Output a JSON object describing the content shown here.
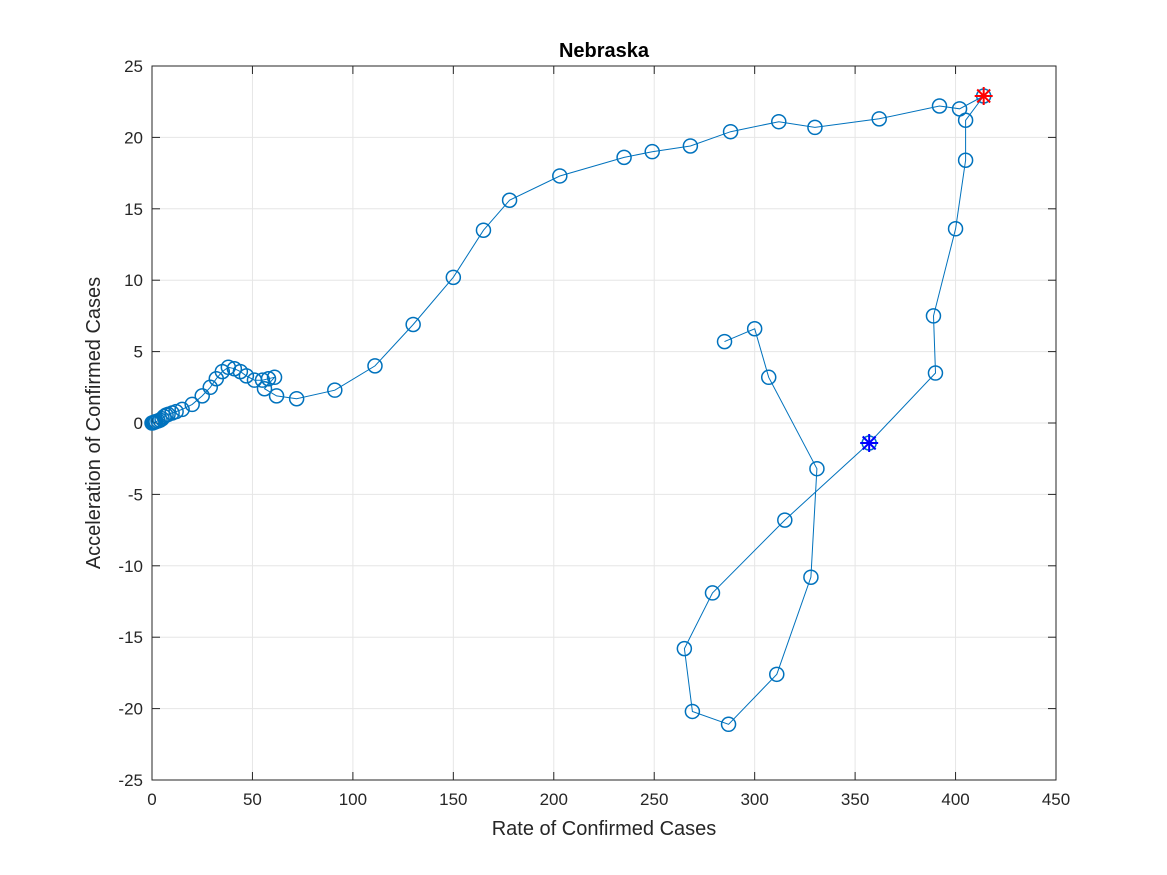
{
  "chart_data": {
    "type": "line",
    "title": "Nebraska",
    "xlabel": "Rate of Confirmed Cases",
    "ylabel": "Acceleration of Confirmed Cases",
    "xlim": [
      0,
      450
    ],
    "ylim": [
      -25,
      25
    ],
    "xticks": [
      0,
      50,
      100,
      150,
      200,
      250,
      300,
      350,
      400,
      450
    ],
    "yticks": [
      -25,
      -20,
      -15,
      -10,
      -5,
      0,
      5,
      10,
      15,
      20,
      25
    ],
    "grid": true,
    "series": [
      {
        "color": "#0072bd",
        "marker": "circle",
        "points": [
          [
            0,
            0
          ],
          [
            0.5,
            0.02
          ],
          [
            1,
            0.05
          ],
          [
            1.5,
            0.08
          ],
          [
            2,
            0.1
          ],
          [
            3,
            0.15
          ],
          [
            4,
            0.2
          ],
          [
            5,
            0.3
          ],
          [
            6,
            0.45
          ],
          [
            7,
            0.55
          ],
          [
            8,
            0.6
          ],
          [
            10,
            0.7
          ],
          [
            12,
            0.8
          ],
          [
            15,
            0.95
          ],
          [
            20,
            1.3
          ],
          [
            25,
            1.9
          ],
          [
            29,
            2.5
          ],
          [
            32,
            3.1
          ],
          [
            35,
            3.6
          ],
          [
            38,
            3.9
          ],
          [
            41,
            3.8
          ],
          [
            44,
            3.6
          ],
          [
            47,
            3.3
          ],
          [
            51,
            3.0
          ],
          [
            55,
            3.0
          ],
          [
            58,
            3.1
          ],
          [
            61,
            3.2
          ],
          [
            56,
            2.4
          ],
          [
            62,
            1.9
          ],
          [
            72,
            1.7
          ],
          [
            91,
            2.3
          ],
          [
            111,
            4.0
          ],
          [
            130,
            6.9
          ],
          [
            150,
            10.2
          ],
          [
            165,
            13.5
          ],
          [
            178,
            15.6
          ],
          [
            203,
            17.3
          ],
          [
            235,
            18.6
          ],
          [
            249,
            19.0
          ],
          [
            268,
            19.4
          ],
          [
            288,
            20.4
          ],
          [
            312,
            21.1
          ],
          [
            330,
            20.7
          ],
          [
            362,
            21.3
          ],
          [
            392,
            22.2
          ],
          [
            402,
            22.0
          ],
          [
            414,
            22.9
          ],
          [
            405,
            21.2
          ],
          [
            405,
            18.4
          ],
          [
            400,
            13.6
          ],
          [
            389,
            7.5
          ],
          [
            390,
            3.5
          ],
          [
            357,
            -1.4
          ],
          [
            315,
            -6.8
          ],
          [
            279,
            -11.9
          ],
          [
            265,
            -15.8
          ],
          [
            269,
            -20.2
          ],
          [
            287,
            -21.1
          ],
          [
            311,
            -17.6
          ],
          [
            328,
            -10.8
          ],
          [
            331,
            -3.2
          ],
          [
            307,
            3.2
          ],
          [
            300,
            6.6
          ],
          [
            285,
            5.7
          ]
        ]
      }
    ],
    "markers": [
      {
        "x": 357,
        "y": -1.4,
        "color": "#0000ff",
        "marker": "asterisk-plus"
      },
      {
        "x": 414,
        "y": 22.9,
        "color": "#ff0000",
        "marker": "asterisk-plus"
      }
    ]
  }
}
